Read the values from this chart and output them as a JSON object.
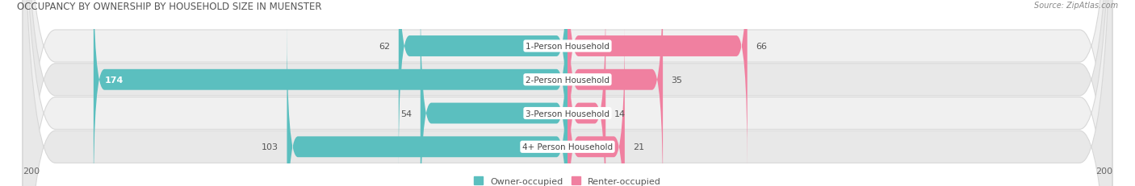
{
  "title": "OCCUPANCY BY OWNERSHIP BY HOUSEHOLD SIZE IN MUENSTER",
  "source": "Source: ZipAtlas.com",
  "categories": [
    "1-Person Household",
    "2-Person Household",
    "3-Person Household",
    "4+ Person Household"
  ],
  "owner_values": [
    62,
    174,
    54,
    103
  ],
  "renter_values": [
    66,
    35,
    14,
    21
  ],
  "owner_color": "#5bbfbf",
  "renter_color": "#f080a0",
  "row_bg_light": "#f0f0f0",
  "row_bg_dark": "#e8e8e8",
  "row_border_color": "#d8d8d8",
  "axis_max": 200,
  "label_fontsize": 8.0,
  "title_fontsize": 8.5,
  "source_fontsize": 7.0,
  "bar_height": 0.62,
  "fig_width": 14.06,
  "fig_height": 2.32,
  "dpi": 100,
  "legend_owner_label": "Owner-occupied",
  "legend_renter_label": "Renter-occupied"
}
